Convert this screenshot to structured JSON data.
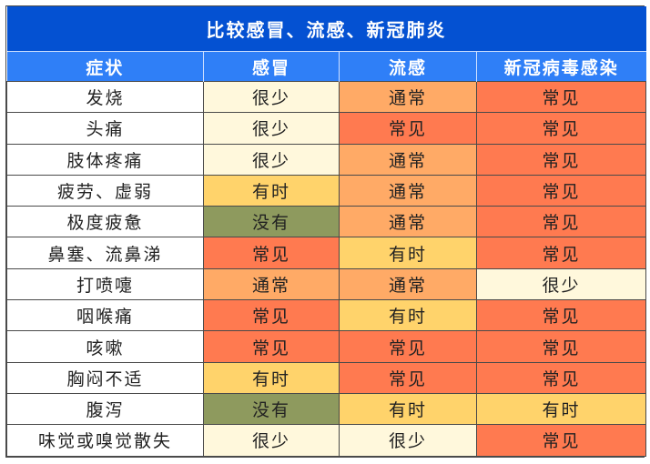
{
  "title": "比较感冒、流感、新冠肺炎",
  "headers": [
    "症状",
    "感冒",
    "流感",
    "新冠病毒感染"
  ],
  "levels": {
    "很少": {
      "class": "lv-rare",
      "color": "#FFF8DC"
    },
    "没有": {
      "class": "lv-none",
      "color": "#8E9A5E"
    },
    "有时": {
      "class": "lv-sometimes",
      "color": "#FFD36B"
    },
    "通常": {
      "class": "lv-usual",
      "color": "#FFAA66"
    },
    "常见": {
      "class": "lv-common",
      "color": "#FF7A50"
    }
  },
  "colors": {
    "title_bg": "#0451D2",
    "header_bg": "#2F7FF7"
  },
  "rows": [
    {
      "symptom": "发烧",
      "cold": "很少",
      "flu": "通常",
      "covid": "常见"
    },
    {
      "symptom": "头痛",
      "cold": "很少",
      "flu": "常见",
      "covid": "常见"
    },
    {
      "symptom": "肢体疼痛",
      "cold": "很少",
      "flu": "通常",
      "covid": "常见"
    },
    {
      "symptom": "疲劳、虚弱",
      "cold": "有时",
      "flu": "通常",
      "covid": "常见"
    },
    {
      "symptom": "极度疲惫",
      "cold": "没有",
      "flu": "通常",
      "covid": "常见"
    },
    {
      "symptom": "鼻塞、流鼻涕",
      "cold": "常见",
      "flu": "有时",
      "covid": "常见"
    },
    {
      "symptom": "打喷嚏",
      "cold": "通常",
      "flu": "通常",
      "covid": "很少"
    },
    {
      "symptom": "咽喉痛",
      "cold": "常见",
      "flu": "有时",
      "covid": "常见"
    },
    {
      "symptom": "咳嗽",
      "cold": "常见",
      "flu": "常见",
      "covid": "常见"
    },
    {
      "symptom": "胸闷不适",
      "cold": "有时",
      "flu": "常见",
      "covid": "常见"
    },
    {
      "symptom": "腹泻",
      "cold": "没有",
      "flu": "有时",
      "covid": "有时"
    },
    {
      "symptom": "味觉或嗅觉散失",
      "cold": "很少",
      "flu": "很少",
      "covid": "常见"
    }
  ]
}
